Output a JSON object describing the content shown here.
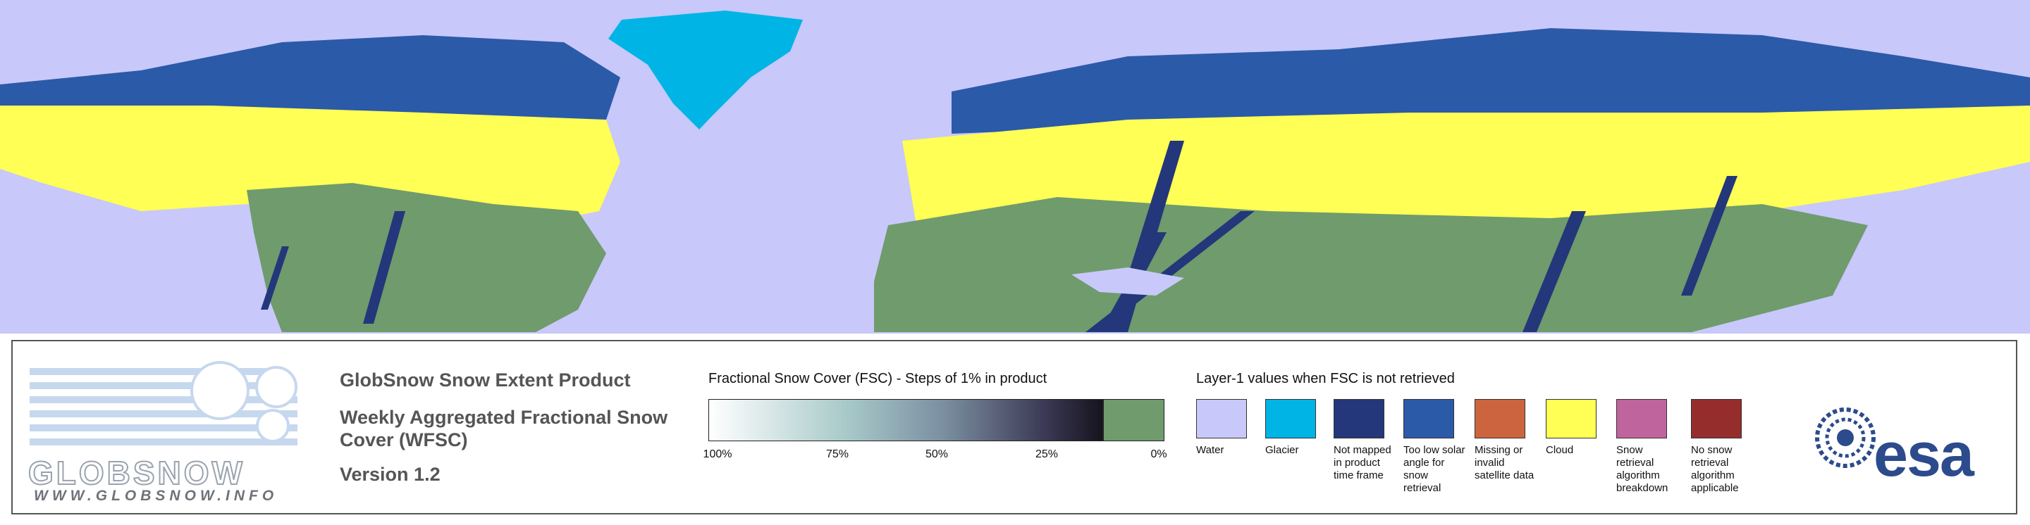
{
  "header": {
    "product": "GlobSnow Snow Extent Product",
    "subtitle": "Weekly Aggregated Fractional Snow Cover (WFSC)",
    "version": "Version 1.2"
  },
  "logo": {
    "name": "GLOBSNOW",
    "url": "WWW.GLOBSNOW.INFO"
  },
  "agency": "esa",
  "fsc_legend": {
    "title": "Fractional Snow Cover (FSC) - Steps of 1% in product",
    "ticks": [
      "100%",
      "75%",
      "50%",
      "25%",
      "0%"
    ]
  },
  "layer1_legend": {
    "title": "Layer-1 values when FSC is not retrieved",
    "items": [
      {
        "label": "Water",
        "color": "#c8c8fa"
      },
      {
        "label": "Glacier",
        "color": "#00b4e6"
      },
      {
        "label": "Not mapped in product time frame",
        "color": "#23377a"
      },
      {
        "label": "Too low solar angle for snow retrieval",
        "color": "#2b5aa8"
      },
      {
        "label": "Missing or invalid satellite data",
        "color": "#cd6440"
      },
      {
        "label": "Cloud",
        "color": "#ffff55"
      },
      {
        "label": "Snow retrieval algorithm breakdown",
        "color": "#c0649e"
      },
      {
        "label": "No snow retrieval algorithm applicable",
        "color": "#962d2d"
      }
    ]
  }
}
